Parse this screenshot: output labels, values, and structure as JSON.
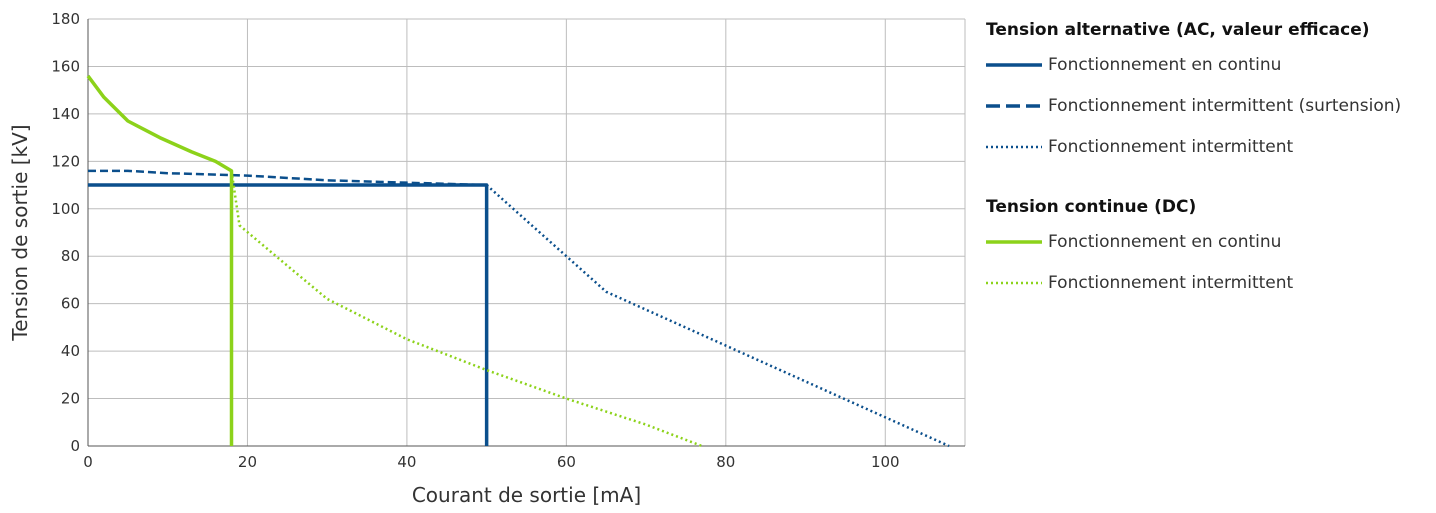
{
  "chart_data": {
    "type": "line",
    "xlabel": "Courant de sortie [mA]",
    "ylabel": "Tension de sortie [kV]",
    "xlim": [
      0,
      110
    ],
    "ylim": [
      0,
      180
    ],
    "xticks": [
      0,
      20,
      40,
      60,
      80,
      100
    ],
    "yticks": [
      0,
      20,
      40,
      60,
      80,
      100,
      120,
      140,
      160,
      180
    ],
    "grid": true,
    "legend_position": "right",
    "colors": {
      "ac": "#0b4f8c",
      "dc": "#8cd21a",
      "grid": "#bdbdbd"
    },
    "legend": [
      {
        "title": "Tension alternative (AC, valeur efficace)",
        "items": [
          {
            "label": "Fonctionnement en continu",
            "style": "solid",
            "color": "#0b4f8c"
          },
          {
            "label": "Fonctionnement intermittent (surtension)",
            "style": "dashed",
            "color": "#0b4f8c"
          },
          {
            "label": "Fonctionnement intermittent",
            "style": "dotted",
            "color": "#0b4f8c"
          }
        ]
      },
      {
        "title": "Tension continue (DC)",
        "items": [
          {
            "label": "Fonctionnement en continu",
            "style": "solid",
            "color": "#8cd21a"
          },
          {
            "label": "Fonctionnement intermittent",
            "style": "dotted",
            "color": "#8cd21a"
          }
        ]
      }
    ],
    "series": [
      {
        "key": "ac-continu",
        "style": "solid",
        "color": "#0b4f8c",
        "x": [
          0,
          50,
          50
        ],
        "y": [
          110,
          110,
          0
        ]
      },
      {
        "key": "ac-surtension",
        "style": "dashed",
        "color": "#0b4f8c",
        "x": [
          0,
          5,
          10,
          20,
          30,
          40,
          50
        ],
        "y": [
          116,
          116,
          115,
          114,
          112,
          111,
          110
        ]
      },
      {
        "key": "ac-intermittent",
        "style": "dotted",
        "color": "#0b4f8c",
        "x": [
          50,
          65,
          108
        ],
        "y": [
          110,
          65,
          0
        ]
      },
      {
        "key": "dc-continu",
        "style": "solid",
        "color": "#8cd21a",
        "x": [
          0,
          2,
          5,
          9,
          13,
          16,
          18,
          18
        ],
        "y": [
          156,
          147,
          137,
          130,
          124,
          120,
          116,
          0
        ]
      },
      {
        "key": "dc-intermittent",
        "style": "dotted",
        "color": "#8cd21a",
        "x": [
          18,
          19,
          25,
          30,
          40,
          50,
          60,
          70,
          77
        ],
        "y": [
          116,
          93,
          76,
          62,
          45,
          32,
          20,
          9,
          0
        ]
      }
    ]
  }
}
